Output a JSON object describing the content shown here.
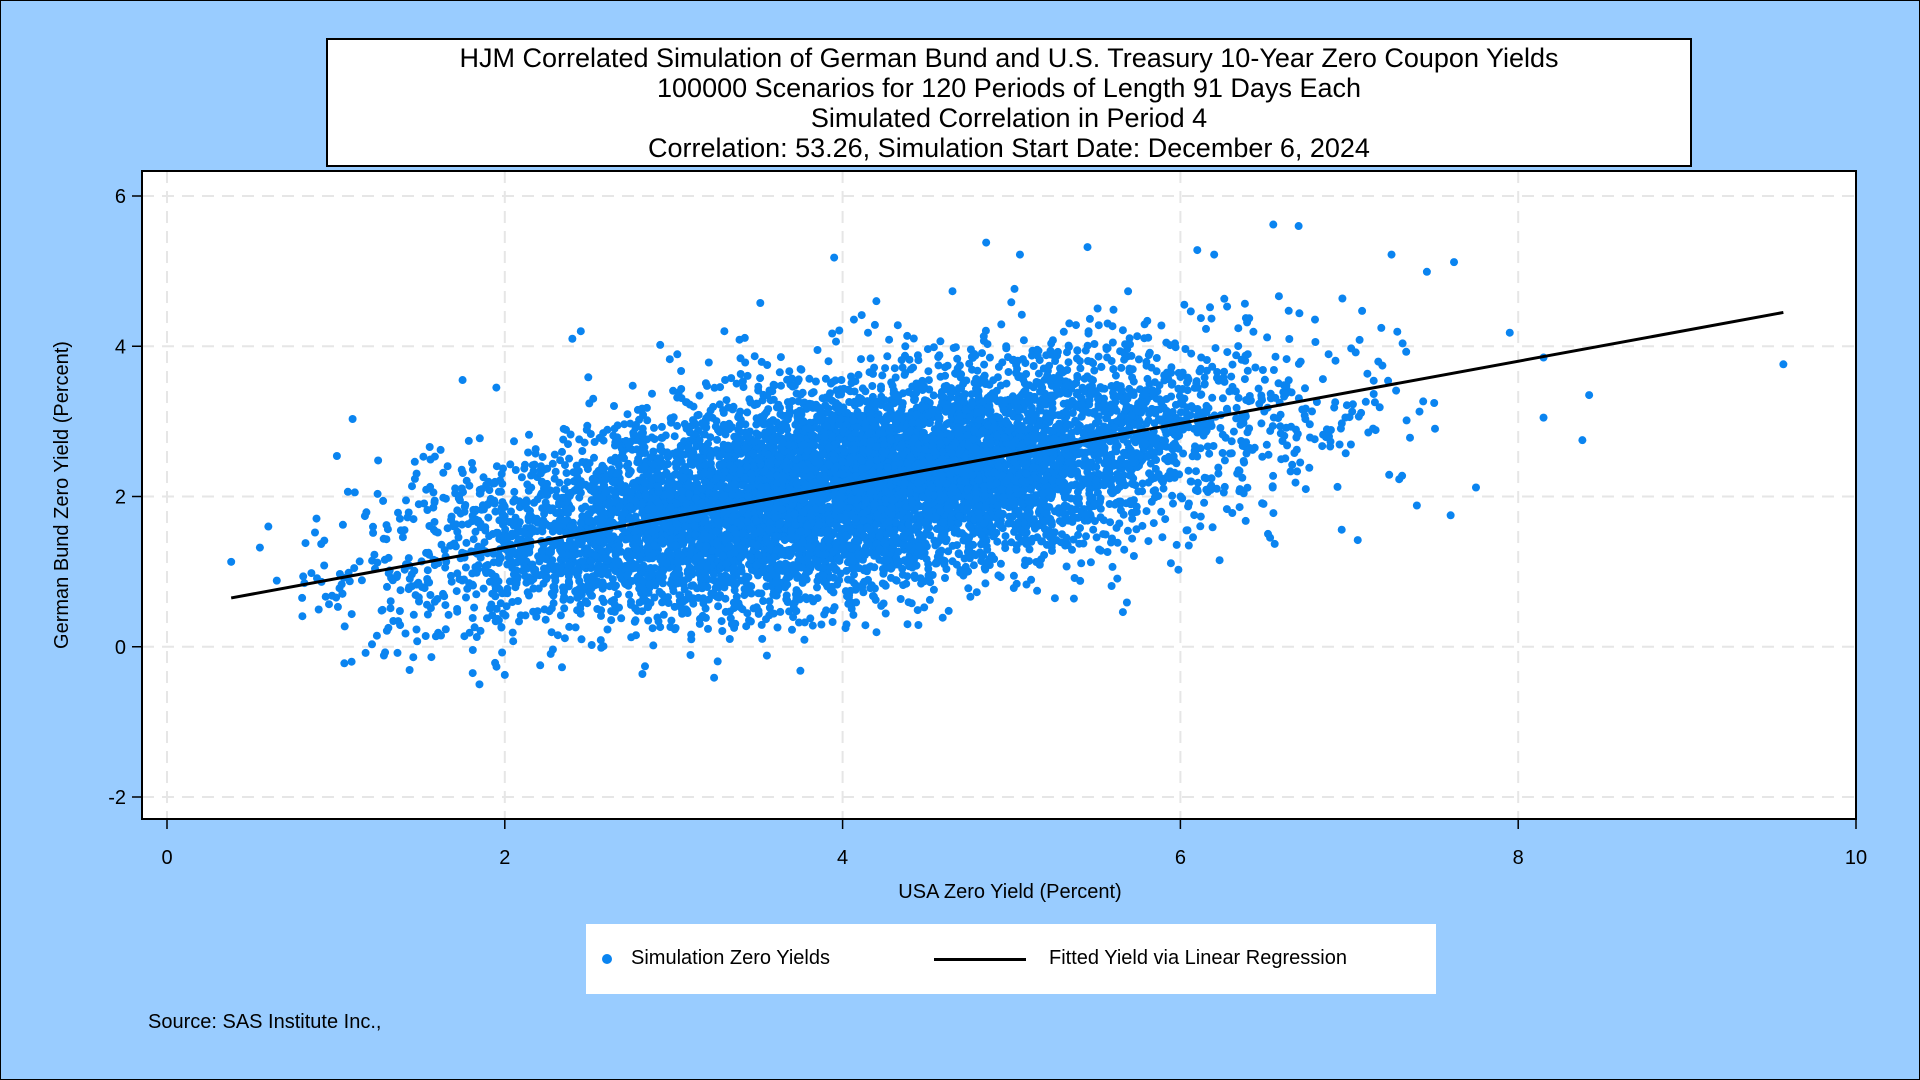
{
  "title_lines": [
    "HJM Correlated Simulation of German Bund and U.S. Treasury 10-Year Zero Coupon Yields",
    "100000 Scenarios for 120 Periods of Length 91 Days Each",
    "Simulated Correlation in Period 4",
    "Correlation: 53.26,  Simulation Start Date:   December 6, 2024"
  ],
  "source": "Source: SAS Institute Inc.,",
  "legend": {
    "scatter_label": "Simulation Zero Yields",
    "line_label": "Fitted Yield via Linear Regression"
  },
  "colors": {
    "background": "#99ccff",
    "points": "#0a84f0",
    "fit_line": "#000000",
    "grid": "#e6e6e6"
  },
  "chart_data": {
    "type": "scatter",
    "xlabel": "USA Zero Yield (Percent)",
    "ylabel": "German Bund Zero Yield (Percent)",
    "xlim": [
      0,
      10
    ],
    "ylim": [
      -2,
      6
    ],
    "xticks": [
      0,
      2,
      4,
      6,
      8,
      10
    ],
    "yticks": [
      -2,
      0,
      2,
      4,
      6
    ],
    "grid": true,
    "legend_position": "bottom",
    "series": [
      {
        "name": "Simulation Zero Yields",
        "kind": "scatter",
        "cloud": {
          "x_mean": 4.0,
          "y_mean": 2.1,
          "x_sd": 1.15,
          "y_sd": 0.8,
          "correlation": 0.5326,
          "n_drawn": 9000
        },
        "outliers": [
          [
            0.38,
            1.13
          ],
          [
            0.55,
            1.32
          ],
          [
            0.6,
            1.6
          ],
          [
            0.65,
            0.88
          ],
          [
            0.8,
            0.65
          ],
          [
            0.82,
            1.38
          ],
          [
            1.05,
            -0.22
          ],
          [
            1.25,
            2.48
          ],
          [
            1.62,
            2.62
          ],
          [
            1.75,
            3.55
          ],
          [
            1.85,
            -0.5
          ],
          [
            1.95,
            3.45
          ],
          [
            2.4,
            4.1
          ],
          [
            2.45,
            4.2
          ],
          [
            3.3,
            4.2
          ],
          [
            3.75,
            -0.32
          ],
          [
            3.95,
            5.18
          ],
          [
            4.2,
            4.6
          ],
          [
            4.85,
            5.38
          ],
          [
            5.05,
            5.22
          ],
          [
            5.45,
            5.32
          ],
          [
            5.6,
            4.05
          ],
          [
            6.1,
            5.28
          ],
          [
            6.2,
            5.22
          ],
          [
            6.55,
            5.62
          ],
          [
            6.7,
            5.6
          ],
          [
            7.05,
            1.42
          ],
          [
            7.25,
            5.22
          ],
          [
            7.4,
            1.88
          ],
          [
            7.6,
            1.75
          ],
          [
            7.62,
            5.12
          ],
          [
            7.75,
            2.12
          ],
          [
            7.95,
            4.18
          ],
          [
            8.15,
            3.85
          ],
          [
            8.15,
            3.05
          ],
          [
            8.38,
            2.75
          ],
          [
            8.42,
            3.35
          ],
          [
            9.57,
            3.76
          ]
        ]
      },
      {
        "name": "Fitted Yield via Linear Regression",
        "kind": "line",
        "x": [
          0.38,
          9.57
        ],
        "y": [
          0.65,
          4.45
        ]
      }
    ]
  }
}
